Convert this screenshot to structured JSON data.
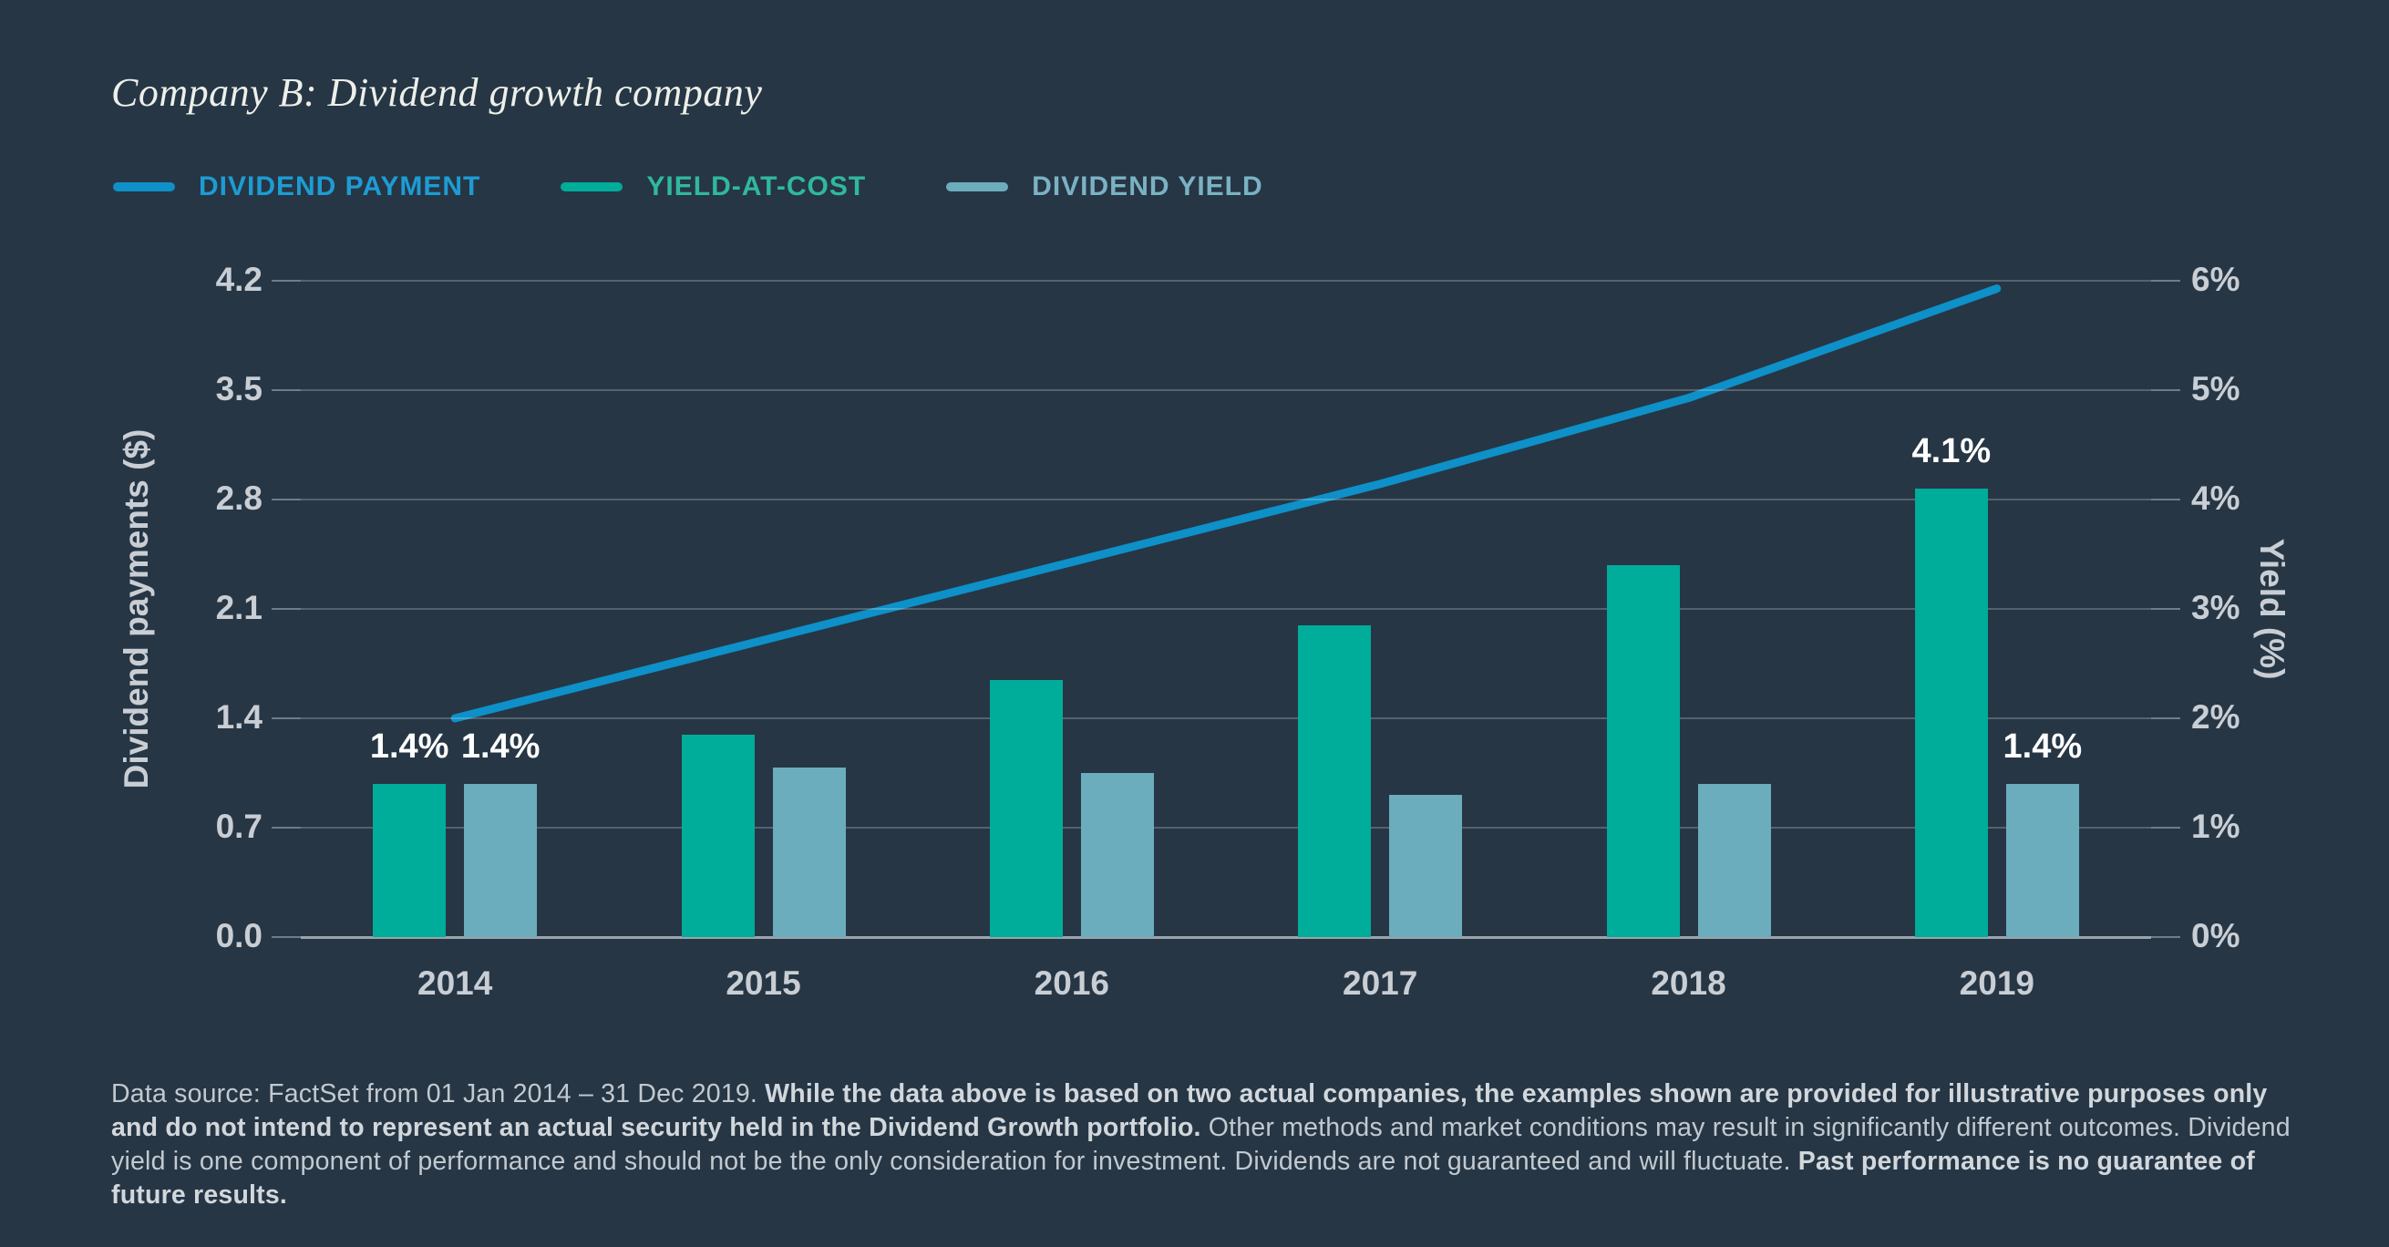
{
  "colors": {
    "background": "#263645",
    "title_text": "#edefe9",
    "tick_text": "#c9ced4",
    "gridline": "rgba(255,255,255,0.22)",
    "axis_baseline": "#9aa4ac",
    "annotation_text": "#ffffff",
    "footnote_text": "#c2c9cf",
    "legend_text": [
      "#1d9cd3",
      "#30b89f",
      "#7bb2c3"
    ]
  },
  "chart_data": {
    "type": "bar",
    "title": "Company B: Dividend growth company",
    "categories": [
      "2014",
      "2015",
      "2016",
      "2017",
      "2018",
      "2019"
    ],
    "series": [
      {
        "name": "DIVIDEND PAYMENT",
        "type": "line",
        "axis": "left",
        "unit": "$",
        "color": "#0e90c8",
        "values": [
          1.4,
          1.9,
          2.4,
          2.9,
          3.45,
          4.15
        ]
      },
      {
        "name": "YIELD-AT-COST",
        "type": "bar",
        "axis": "right",
        "unit": "%",
        "color": "#00ac9a",
        "values": [
          1.4,
          1.85,
          2.35,
          2.85,
          3.4,
          4.1
        ]
      },
      {
        "name": "DIVIDEND YIELD",
        "type": "bar",
        "axis": "right",
        "unit": "%",
        "color": "#6cadbd",
        "values": [
          1.4,
          1.55,
          1.5,
          1.3,
          1.4,
          1.4
        ]
      }
    ],
    "ylabel_left": "Dividend payments ($)",
    "ylabel_right": "Yield (%)",
    "yticks_left": [
      "0.0",
      "0.7",
      "1.4",
      "2.1",
      "2.8",
      "3.5",
      "4.2"
    ],
    "yticks_right": [
      "0%",
      "1%",
      "2%",
      "3%",
      "4%",
      "5%",
      "6%"
    ],
    "ylim_left": [
      0,
      4.2
    ],
    "ylim_right": [
      0,
      6
    ],
    "grid": true,
    "legend_position": "top-left",
    "annotations": [
      {
        "category": "2014",
        "series": "YIELD-AT-COST",
        "text": "1.4%"
      },
      {
        "category": "2014",
        "series": "DIVIDEND YIELD",
        "text": "1.4%"
      },
      {
        "category": "2019",
        "series": "YIELD-AT-COST",
        "text": "4.1%"
      },
      {
        "category": "2019",
        "series": "DIVIDEND YIELD",
        "text": "1.4%"
      }
    ]
  },
  "footnote_segments": [
    {
      "text": "Data source: FactSet from 01 Jan 2014 – 31 Dec 2019. ",
      "bold": false
    },
    {
      "text": "While the data above is based on two actual companies, the examples shown are provided for illustrative purposes only and do not intend to represent an actual security held in the Dividend Growth portfolio.",
      "bold": true
    },
    {
      "text": " Other methods and market conditions may result in significantly different outcomes. Dividend yield is one component of performance and should not be the only consideration for investment. Dividends are not guaranteed and will fluctuate. ",
      "bold": false
    },
    {
      "text": "Past performance is no guarantee of future results.",
      "bold": true
    }
  ]
}
